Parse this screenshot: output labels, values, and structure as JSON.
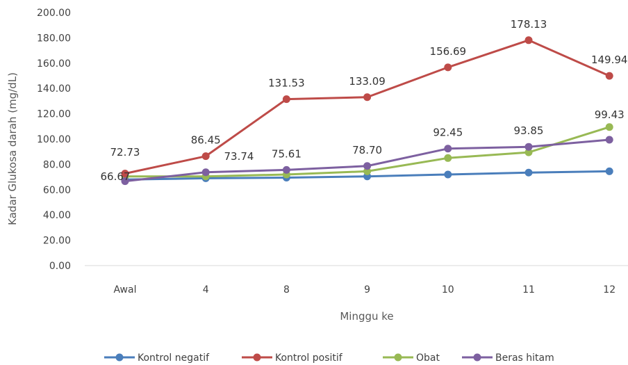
{
  "chart_data": {
    "type": "line",
    "xlabel": "Minggu ke",
    "ylabel": "Kadar Glukosa darah (mg/dL)",
    "ylim": [
      0,
      200
    ],
    "yticks": [
      "0.00",
      "20.00",
      "40.00",
      "60.00",
      "80.00",
      "100.00",
      "120.00",
      "140.00",
      "160.00",
      "180.00",
      "200.00"
    ],
    "categories": [
      "Awal",
      "4",
      "8",
      "9",
      "10",
      "11",
      "12"
    ],
    "grid": false,
    "legend_position": "bottom",
    "series": [
      {
        "name": "Kontrol negatif",
        "color": "#4a7ebb",
        "values": [
          68.0,
          69.0,
          69.5,
          70.5,
          72.0,
          73.5,
          74.5
        ],
        "labels": []
      },
      {
        "name": "Kontrol positif",
        "color": "#be4b48",
        "values": [
          72.73,
          86.45,
          131.53,
          133.09,
          156.69,
          178.13,
          149.94
        ],
        "labels": [
          "72.73",
          "86.45",
          "131.53",
          "133.09",
          "156.69",
          "178.13",
          "149.94"
        ]
      },
      {
        "name": "Obat",
        "color": "#98b954",
        "values": [
          70.5,
          70.5,
          72.0,
          74.5,
          85.0,
          89.5,
          109.5
        ],
        "labels": []
      },
      {
        "name": "Beras hitam",
        "color": "#7d60a0",
        "values": [
          66.67,
          73.74,
          75.61,
          78.7,
          92.45,
          93.85,
          99.43
        ],
        "labels": [
          "66.67",
          "73.74",
          "75.61",
          "78.70",
          "92.45",
          "93.85",
          "99.43"
        ]
      }
    ]
  }
}
